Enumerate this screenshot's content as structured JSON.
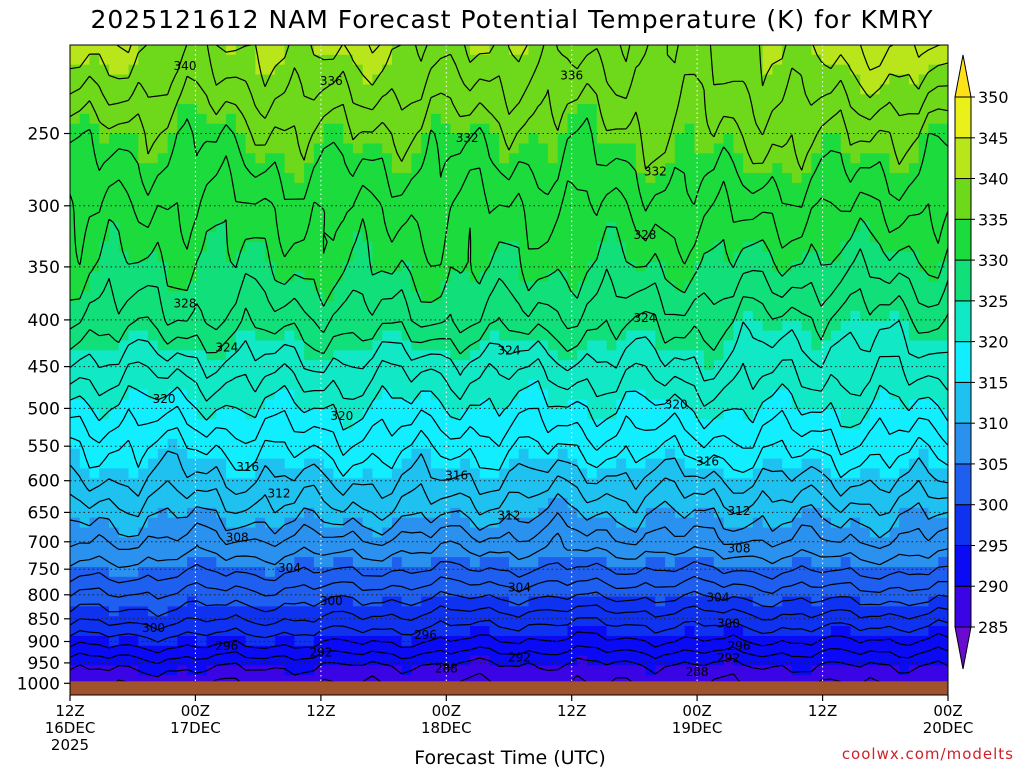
{
  "chart_data": {
    "type": "heatmap",
    "title": "2025121612 NAM Forecast Potential Temperature (K) for KMRY",
    "xlabel": "Forecast Time (UTC)",
    "ylabel": "",
    "credit": "coolwx.com/modelts",
    "x_ticks": [
      {
        "hour": 0,
        "line1": "12Z",
        "line2": "16DEC",
        "line3": "2025"
      },
      {
        "hour": 12,
        "line1": "00Z",
        "line2": "17DEC",
        "line3": ""
      },
      {
        "hour": 24,
        "line1": "12Z",
        "line2": "",
        "line3": ""
      },
      {
        "hour": 36,
        "line1": "00Z",
        "line2": "18DEC",
        "line3": ""
      },
      {
        "hour": 48,
        "line1": "12Z",
        "line2": "",
        "line3": ""
      },
      {
        "hour": 60,
        "line1": "00Z",
        "line2": "19DEC",
        "line3": ""
      },
      {
        "hour": 72,
        "line1": "12Z",
        "line2": "",
        "line3": ""
      },
      {
        "hour": 84,
        "line1": "00Z",
        "line2": "20DEC",
        "line3": ""
      }
    ],
    "xlim": [
      0,
      84
    ],
    "y_ticks": [
      250,
      300,
      350,
      400,
      450,
      500,
      550,
      600,
      650,
      700,
      750,
      800,
      850,
      900,
      950,
      1000
    ],
    "ylim": [
      1030,
      200
    ],
    "y_scale": "log-pressure",
    "colorbar": {
      "levels": [
        285,
        290,
        295,
        300,
        305,
        310,
        315,
        320,
        325,
        330,
        335,
        340,
        345,
        350
      ],
      "colors": [
        "#6a0bcf",
        "#3a04e4",
        "#0a0af5",
        "#0f32f0",
        "#1f5ff0",
        "#2a92ee",
        "#1ec1ef",
        "#10eeff",
        "#11e8c6",
        "#11e07a",
        "#1cdb3c",
        "#6ed81a",
        "#b8e61a",
        "#eaf01a",
        "#ffe11a"
      ],
      "labels": [
        "285",
        "290",
        "295",
        "300",
        "305",
        "310",
        "315",
        "320",
        "325",
        "330",
        "335",
        "340",
        "345",
        "350"
      ]
    },
    "ground_color": "#a0522d",
    "contour_interval": 2,
    "profile_hours": [
      0,
      12,
      24,
      36,
      48,
      60,
      72,
      84
    ],
    "profile_pressure": [
      200,
      250,
      300,
      350,
      400,
      450,
      500,
      550,
      600,
      650,
      700,
      750,
      800,
      850,
      900,
      950,
      1000
    ],
    "profiles": [
      [
        342,
        335.5,
        332.5,
        330.5,
        327,
        323,
        319,
        316,
        314,
        311,
        308.5,
        305.5,
        302,
        299,
        295,
        291,
        288.5
      ],
      [
        339,
        334.5,
        331.5,
        329.5,
        327.5,
        323,
        319.5,
        316,
        313.5,
        310.5,
        307.5,
        304.5,
        301.5,
        298.5,
        295,
        291,
        288
      ],
      [
        341,
        336,
        332.5,
        330.5,
        327,
        323.5,
        320,
        317,
        314,
        311.5,
        307.5,
        304.5,
        301,
        298,
        294.5,
        290.5,
        288
      ],
      [
        340,
        335,
        332,
        330.5,
        328,
        322.5,
        319.5,
        316.5,
        314,
        311,
        307,
        304,
        300.5,
        297,
        294,
        290,
        288
      ],
      [
        339,
        335,
        332,
        330,
        327,
        323,
        319.5,
        316.5,
        313,
        310,
        307,
        304,
        300.5,
        296.5,
        293.5,
        290,
        288
      ],
      [
        338,
        336,
        333,
        330,
        326.5,
        323.5,
        320,
        317,
        313.5,
        310.5,
        307.5,
        304,
        300.5,
        297,
        294,
        290,
        288
      ],
      [
        341,
        336.5,
        332.5,
        329,
        325,
        322.5,
        320,
        317,
        314,
        311,
        308,
        304.5,
        301,
        297.5,
        294,
        290.5,
        288
      ],
      [
        343,
        335,
        332,
        329,
        326,
        323,
        320,
        317,
        314,
        310.5,
        307.5,
        304.5,
        301,
        297,
        293.5,
        290,
        288
      ]
    ],
    "contour_labels": [
      {
        "text": "340",
        "hour": 11,
        "pressure": 211
      },
      {
        "text": "336",
        "hour": 25,
        "pressure": 219
      },
      {
        "text": "336",
        "hour": 48,
        "pressure": 216
      },
      {
        "text": "332",
        "hour": 38,
        "pressure": 253
      },
      {
        "text": "332",
        "hour": 56,
        "pressure": 275
      },
      {
        "text": "328",
        "hour": 55,
        "pressure": 323
      },
      {
        "text": "328",
        "hour": 11,
        "pressure": 384
      },
      {
        "text": "324",
        "hour": 55,
        "pressure": 398
      },
      {
        "text": "324",
        "hour": 15,
        "pressure": 429
      },
      {
        "text": "324",
        "hour": 42,
        "pressure": 432
      },
      {
        "text": "320",
        "hour": 9,
        "pressure": 488
      },
      {
        "text": "320",
        "hour": 26,
        "pressure": 510
      },
      {
        "text": "320",
        "hour": 58,
        "pressure": 495
      },
      {
        "text": "316",
        "hour": 17,
        "pressure": 580
      },
      {
        "text": "316",
        "hour": 37,
        "pressure": 592
      },
      {
        "text": "316",
        "hour": 61,
        "pressure": 572
      },
      {
        "text": "312",
        "hour": 20,
        "pressure": 620
      },
      {
        "text": "312",
        "hour": 42,
        "pressure": 655
      },
      {
        "text": "312",
        "hour": 64,
        "pressure": 648
      },
      {
        "text": "308",
        "hour": 16,
        "pressure": 692
      },
      {
        "text": "308",
        "hour": 64,
        "pressure": 712
      },
      {
        "text": "304",
        "hour": 21,
        "pressure": 748
      },
      {
        "text": "304",
        "hour": 43,
        "pressure": 785
      },
      {
        "text": "304",
        "hour": 62,
        "pressure": 806
      },
      {
        "text": "300",
        "hour": 25,
        "pressure": 813
      },
      {
        "text": "300",
        "hour": 8,
        "pressure": 870
      },
      {
        "text": "300",
        "hour": 63,
        "pressure": 860
      },
      {
        "text": "296",
        "hour": 34,
        "pressure": 885
      },
      {
        "text": "296",
        "hour": 15,
        "pressure": 910
      },
      {
        "text": "296",
        "hour": 64,
        "pressure": 910
      },
      {
        "text": "292",
        "hour": 24,
        "pressure": 925
      },
      {
        "text": "292",
        "hour": 43,
        "pressure": 937
      },
      {
        "text": "292",
        "hour": 63,
        "pressure": 938
      },
      {
        "text": "288",
        "hour": 36,
        "pressure": 963
      },
      {
        "text": "288",
        "hour": 60,
        "pressure": 972
      }
    ]
  }
}
